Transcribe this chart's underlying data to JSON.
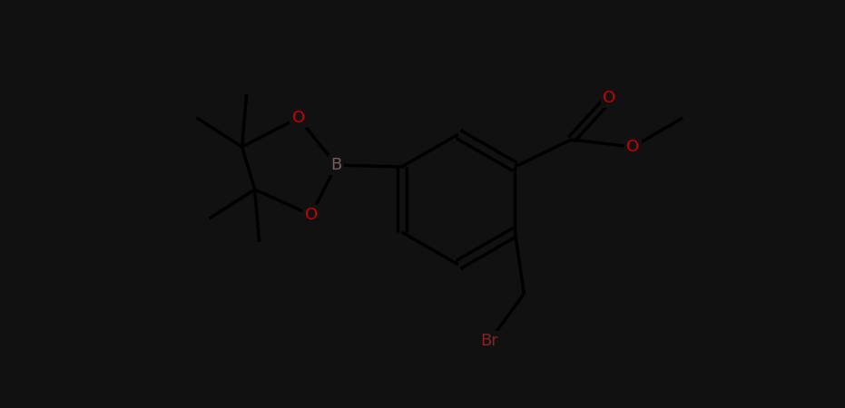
{
  "background_color": "#0d0d0d",
  "bond_color": "#1a1a1a",
  "line_color": "#111111",
  "atom_colors": {
    "B": "#7a5c5c",
    "O": "#cc0000",
    "Br": "#8B2222"
  },
  "figsize": [
    9.31,
    4.5
  ],
  "dpi": 100,
  "lw": 2.5,
  "bg": "#0d0d0d",
  "fg": "#111111"
}
